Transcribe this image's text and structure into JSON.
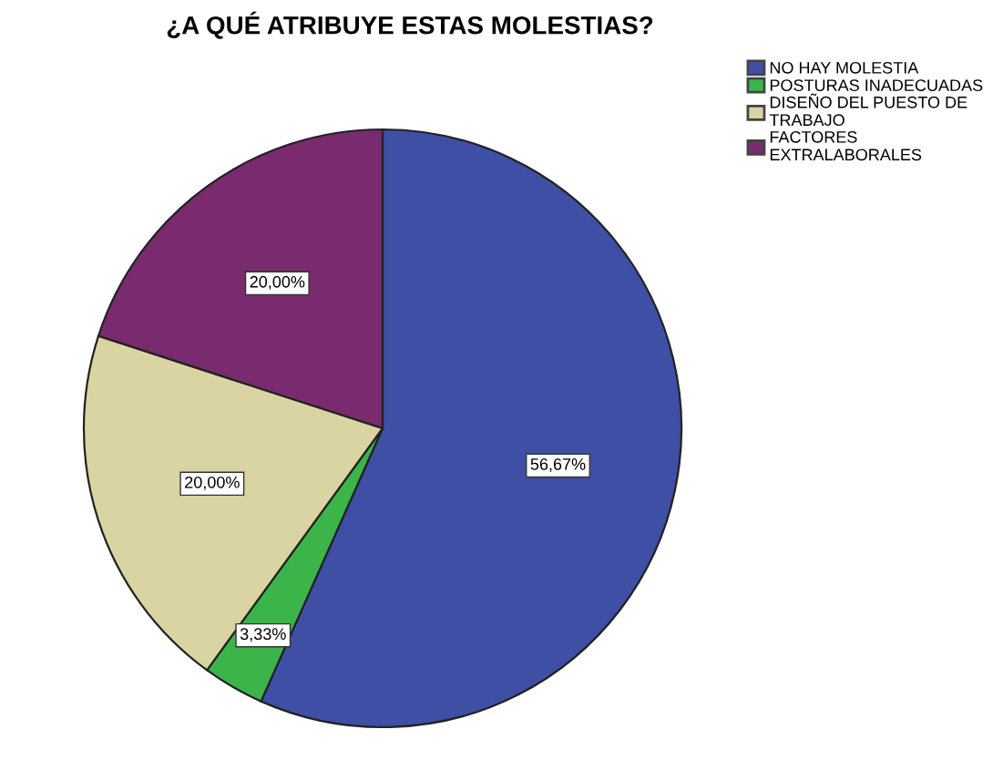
{
  "chart_data": {
    "type": "pie",
    "title": "¿A QUÉ ATRIBUYE ESTAS MOLESTIAS?",
    "categories": [
      "NO HAY MOLESTIA",
      "POSTURAS INADECUADAS",
      "DISEÑO DEL PUESTO DE\nTRABAJO",
      "FACTORES\nEXTRALABORALES"
    ],
    "values": [
      56.67,
      3.33,
      20.0,
      20.0
    ],
    "colors": [
      "#3f4fa6",
      "#3bb54a",
      "#d9d4a2",
      "#7a2a6e"
    ],
    "value_labels": [
      "56,67%",
      "3,33%",
      "20,00%",
      "20,00%"
    ],
    "legend": "top right"
  }
}
